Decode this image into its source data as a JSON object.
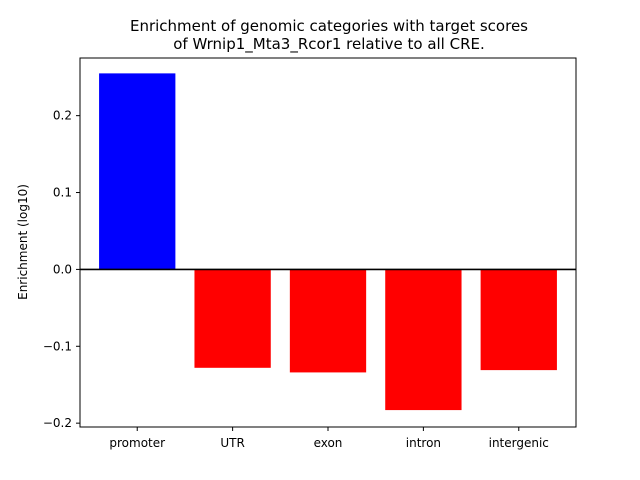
{
  "chart_data": {
    "type": "bar",
    "title_lines": [
      "Enrichment of genomic categories with target scores",
      "of Wrnip1_Mta3_Rcor1 relative to all CRE."
    ],
    "xlabel": "",
    "ylabel": "Enrichment (log10)",
    "categories": [
      "promoter",
      "UTR",
      "exon",
      "intron",
      "intergenic"
    ],
    "values": [
      0.255,
      -0.128,
      -0.134,
      -0.183,
      -0.131
    ],
    "bar_colors": [
      "#0000ff",
      "#ff0000",
      "#ff0000",
      "#ff0000",
      "#ff0000"
    ],
    "ylim": [
      -0.205,
      0.275
    ],
    "yticks": [
      -0.2,
      -0.1,
      0.0,
      0.1,
      0.2
    ],
    "ytick_labels": [
      "−0.2",
      "−0.1",
      "0.0",
      "0.1",
      "0.2"
    ],
    "baseline": 0,
    "grid": false
  }
}
